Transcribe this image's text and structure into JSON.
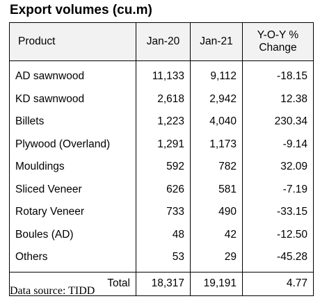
{
  "title": "Export volumes (cu.m)",
  "columns": {
    "product": "Product",
    "jan20": "Jan-20",
    "jan21": "Jan-21",
    "change_line1": "Y-O-Y %",
    "change_line2": "Change"
  },
  "rows": [
    {
      "product": "AD sawnwood",
      "jan20": "11,133",
      "jan21": "9,112",
      "change": "-18.15"
    },
    {
      "product": "KD sawnwood",
      "jan20": "2,618",
      "jan21": "2,942",
      "change": "12.38"
    },
    {
      "product": "Billets",
      "jan20": "1,223",
      "jan21": "4,040",
      "change": "230.34"
    },
    {
      "product": "Plywood (Overland)",
      "jan20": "1,291",
      "jan21": "1,173",
      "change": "-9.14"
    },
    {
      "product": "Mouldings",
      "jan20": "592",
      "jan21": "782",
      "change": "32.09"
    },
    {
      "product": "Sliced Veneer",
      "jan20": "626",
      "jan21": "581",
      "change": "-7.19"
    },
    {
      "product": "Rotary Veneer",
      "jan20": "733",
      "jan21": "490",
      "change": "-33.15"
    },
    {
      "product": "Boules (AD)",
      "jan20": "48",
      "jan21": "42",
      "change": "-12.50"
    },
    {
      "product": "Others",
      "jan20": "53",
      "jan21": "29",
      "change": "-45.28"
    }
  ],
  "total": {
    "label": "Total",
    "jan20": "18,317",
    "jan21": "19,191",
    "change": "4.77"
  },
  "source": "Data source: TIDD"
}
